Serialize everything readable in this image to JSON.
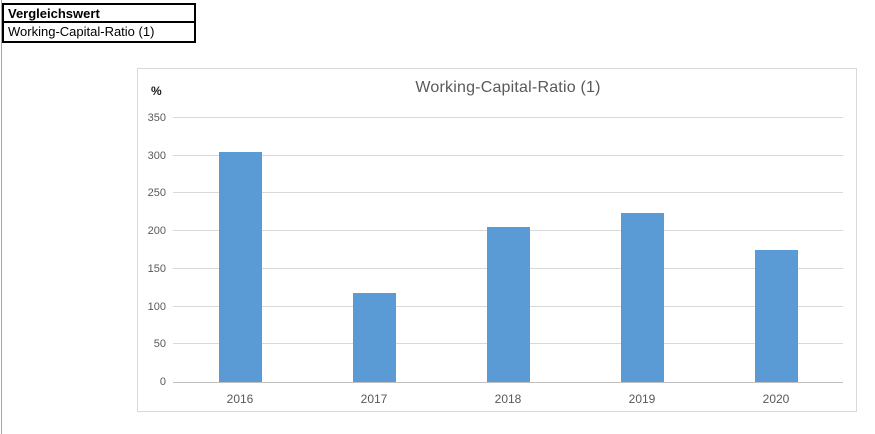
{
  "table": {
    "header": "Vergleichswert",
    "value": "Working-Capital-Ratio (1)"
  },
  "chart_data": {
    "type": "bar",
    "title": "Working-Capital-Ratio (1)",
    "y_axis_unit": "%",
    "xlabel": "",
    "ylabel": "%",
    "categories": [
      "2016",
      "2017",
      "2018",
      "2019",
      "2020"
    ],
    "values": [
      305,
      118,
      205,
      224,
      175
    ],
    "ylim": [
      0,
      350
    ],
    "y_ticks": [
      0,
      50,
      100,
      150,
      200,
      250,
      300,
      350
    ],
    "grid": true,
    "legend": false,
    "colors": {
      "bar": "#5B9BD5",
      "gridline": "#D9D9D9",
      "axis_line": "#BFBFBF",
      "title_text": "#595959",
      "tick_text": "#595959",
      "chart_border": "#D9D9D9"
    }
  }
}
